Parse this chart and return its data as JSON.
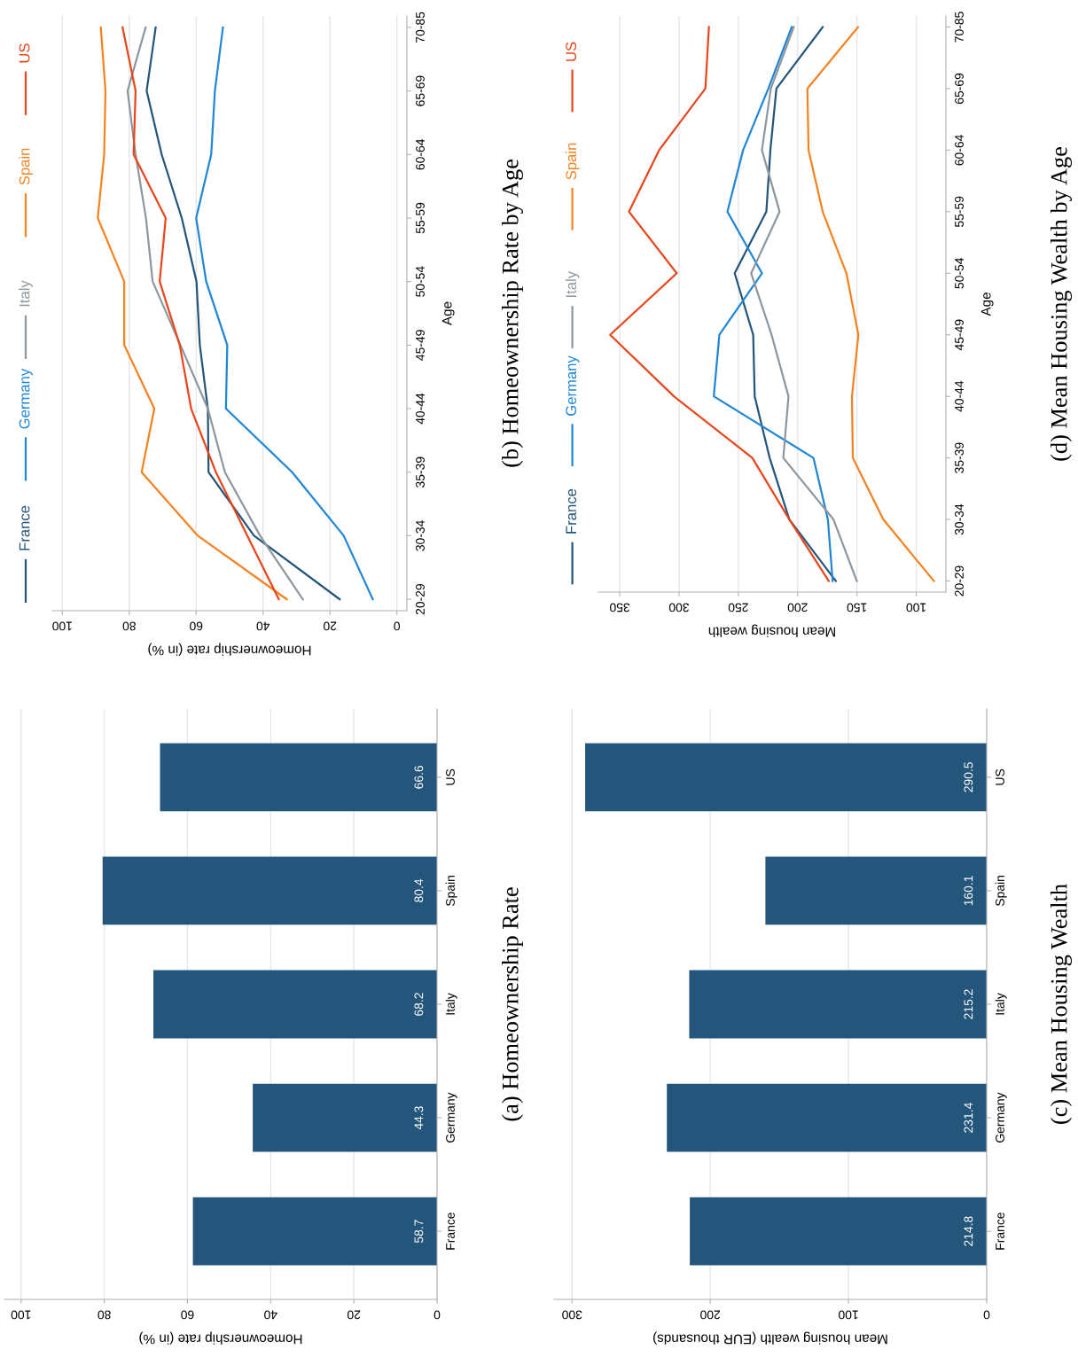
{
  "chart_data": [
    {
      "type": "bar",
      "orientation": "horizontal",
      "annotations": [
        "(a) Homeownership Rate"
      ],
      "xlabel": "Homeownership rate (in %)",
      "categories": [
        "US",
        "Spain",
        "Italy",
        "Germany",
        "France"
      ],
      "values": [
        66.6,
        80.4,
        68.2,
        44.3,
        58.7
      ],
      "color": "#24557a",
      "data_labels": true,
      "xlim": [
        104,
        0
      ],
      "xticks": [
        100,
        80,
        60,
        40,
        20,
        0
      ],
      "grid": "x"
    },
    {
      "type": "line",
      "orientation": "horizontal",
      "annotations": [
        "(b) Homeownership Rate by Age"
      ],
      "xlabel": "Homeownership rate (in %)",
      "ylabel": "Age",
      "categories": [
        "70-85",
        "65-69",
        "60-64",
        "55-59",
        "50-54",
        "45-49",
        "40-44",
        "35-39",
        "30-34",
        "20-29"
      ],
      "xlim": [
        103,
        -3
      ],
      "xticks": [
        100,
        80,
        60,
        40,
        20,
        0
      ],
      "grid": "x",
      "legend": "left",
      "series": [
        {
          "name": "France",
          "color": "#24557a",
          "values": [
            72.1,
            74.8,
            70.3,
            64.3,
            59.9,
            58.9,
            56.5,
            56.3,
            42.7,
            17.1
          ]
        },
        {
          "name": "Germany",
          "color": "#1f86d8",
          "values": [
            52.0,
            54.4,
            55.5,
            60.0,
            57.0,
            50.7,
            51.1,
            31.3,
            15.9,
            7.2
          ]
        },
        {
          "name": "Italy",
          "color": "#8e979e",
          "values": [
            75.1,
            80.5,
            78.1,
            75.0,
            73.0,
            64.7,
            56.5,
            51.4,
            40.9,
            28.1
          ]
        },
        {
          "name": "Spain",
          "color": "#f6821f",
          "values": [
            88.5,
            87.1,
            87.5,
            89.4,
            81.5,
            81.5,
            72.5,
            76.3,
            59.5,
            32.9
          ]
        },
        {
          "name": "US",
          "color": "#e8461a",
          "values": [
            82.0,
            78.1,
            78.7,
            69.1,
            70.9,
            64.9,
            61.5,
            54.1,
            44.7,
            35.3
          ]
        }
      ]
    },
    {
      "type": "bar",
      "orientation": "horizontal",
      "annotations": [
        "(c) Mean Housing Wealth"
      ],
      "xlabel": "Mean housing wealth (EUR thousands)",
      "categories": [
        "US",
        "Spain",
        "Italy",
        "Germany",
        "France"
      ],
      "values": [
        290.5,
        160.1,
        215.2,
        231.4,
        214.8
      ],
      "color": "#24557a",
      "data_labels": true,
      "xlim": [
        313,
        0
      ],
      "xticks": [
        300,
        200,
        100,
        0
      ],
      "grid": "x"
    },
    {
      "type": "line",
      "orientation": "horizontal",
      "annotations": [
        "(d) Mean Housing Wealth by Age"
      ],
      "xlabel": "Mean housing wealth",
      "ylabel": "Age",
      "categories": [
        "70-85",
        "65-69",
        "60-64",
        "55-59",
        "50-54",
        "45-49",
        "40-44",
        "35-39",
        "30-34",
        "20-29"
      ],
      "xlim": [
        368,
        75
      ],
      "xticks": [
        350,
        300,
        250,
        200,
        150,
        100
      ],
      "grid": "x",
      "legend": "left",
      "series": [
        {
          "name": "France",
          "color": "#24557a",
          "values": [
            178.9,
            217.9,
            223.0,
            226.4,
            253.1,
            237.5,
            236.2,
            223.6,
            207.0,
            167.8
          ]
        },
        {
          "name": "Germany",
          "color": "#1f86d8",
          "values": [
            205.0,
            224.7,
            246.0,
            259.2,
            230.1,
            266.0,
            270.7,
            186.7,
            174.5,
            170.5
          ]
        },
        {
          "name": "Italy",
          "color": "#8e979e",
          "values": [
            203.3,
            222.6,
            230.1,
            215.2,
            239.2,
            222.0,
            207.7,
            212.1,
            169.8,
            150.1
          ]
        },
        {
          "name": "Spain",
          "color": "#f6821f",
          "values": [
            149.1,
            191.8,
            190.8,
            178.9,
            158.9,
            148.8,
            154.2,
            153.5,
            127.8,
            85.1
          ]
        },
        {
          "name": "US",
          "color": "#e8461a",
          "values": [
            274.8,
            277.8,
            316.8,
            342.2,
            301.9,
            358.1,
            304.3,
            238.2,
            207.0,
            173.8
          ]
        }
      ]
    }
  ]
}
